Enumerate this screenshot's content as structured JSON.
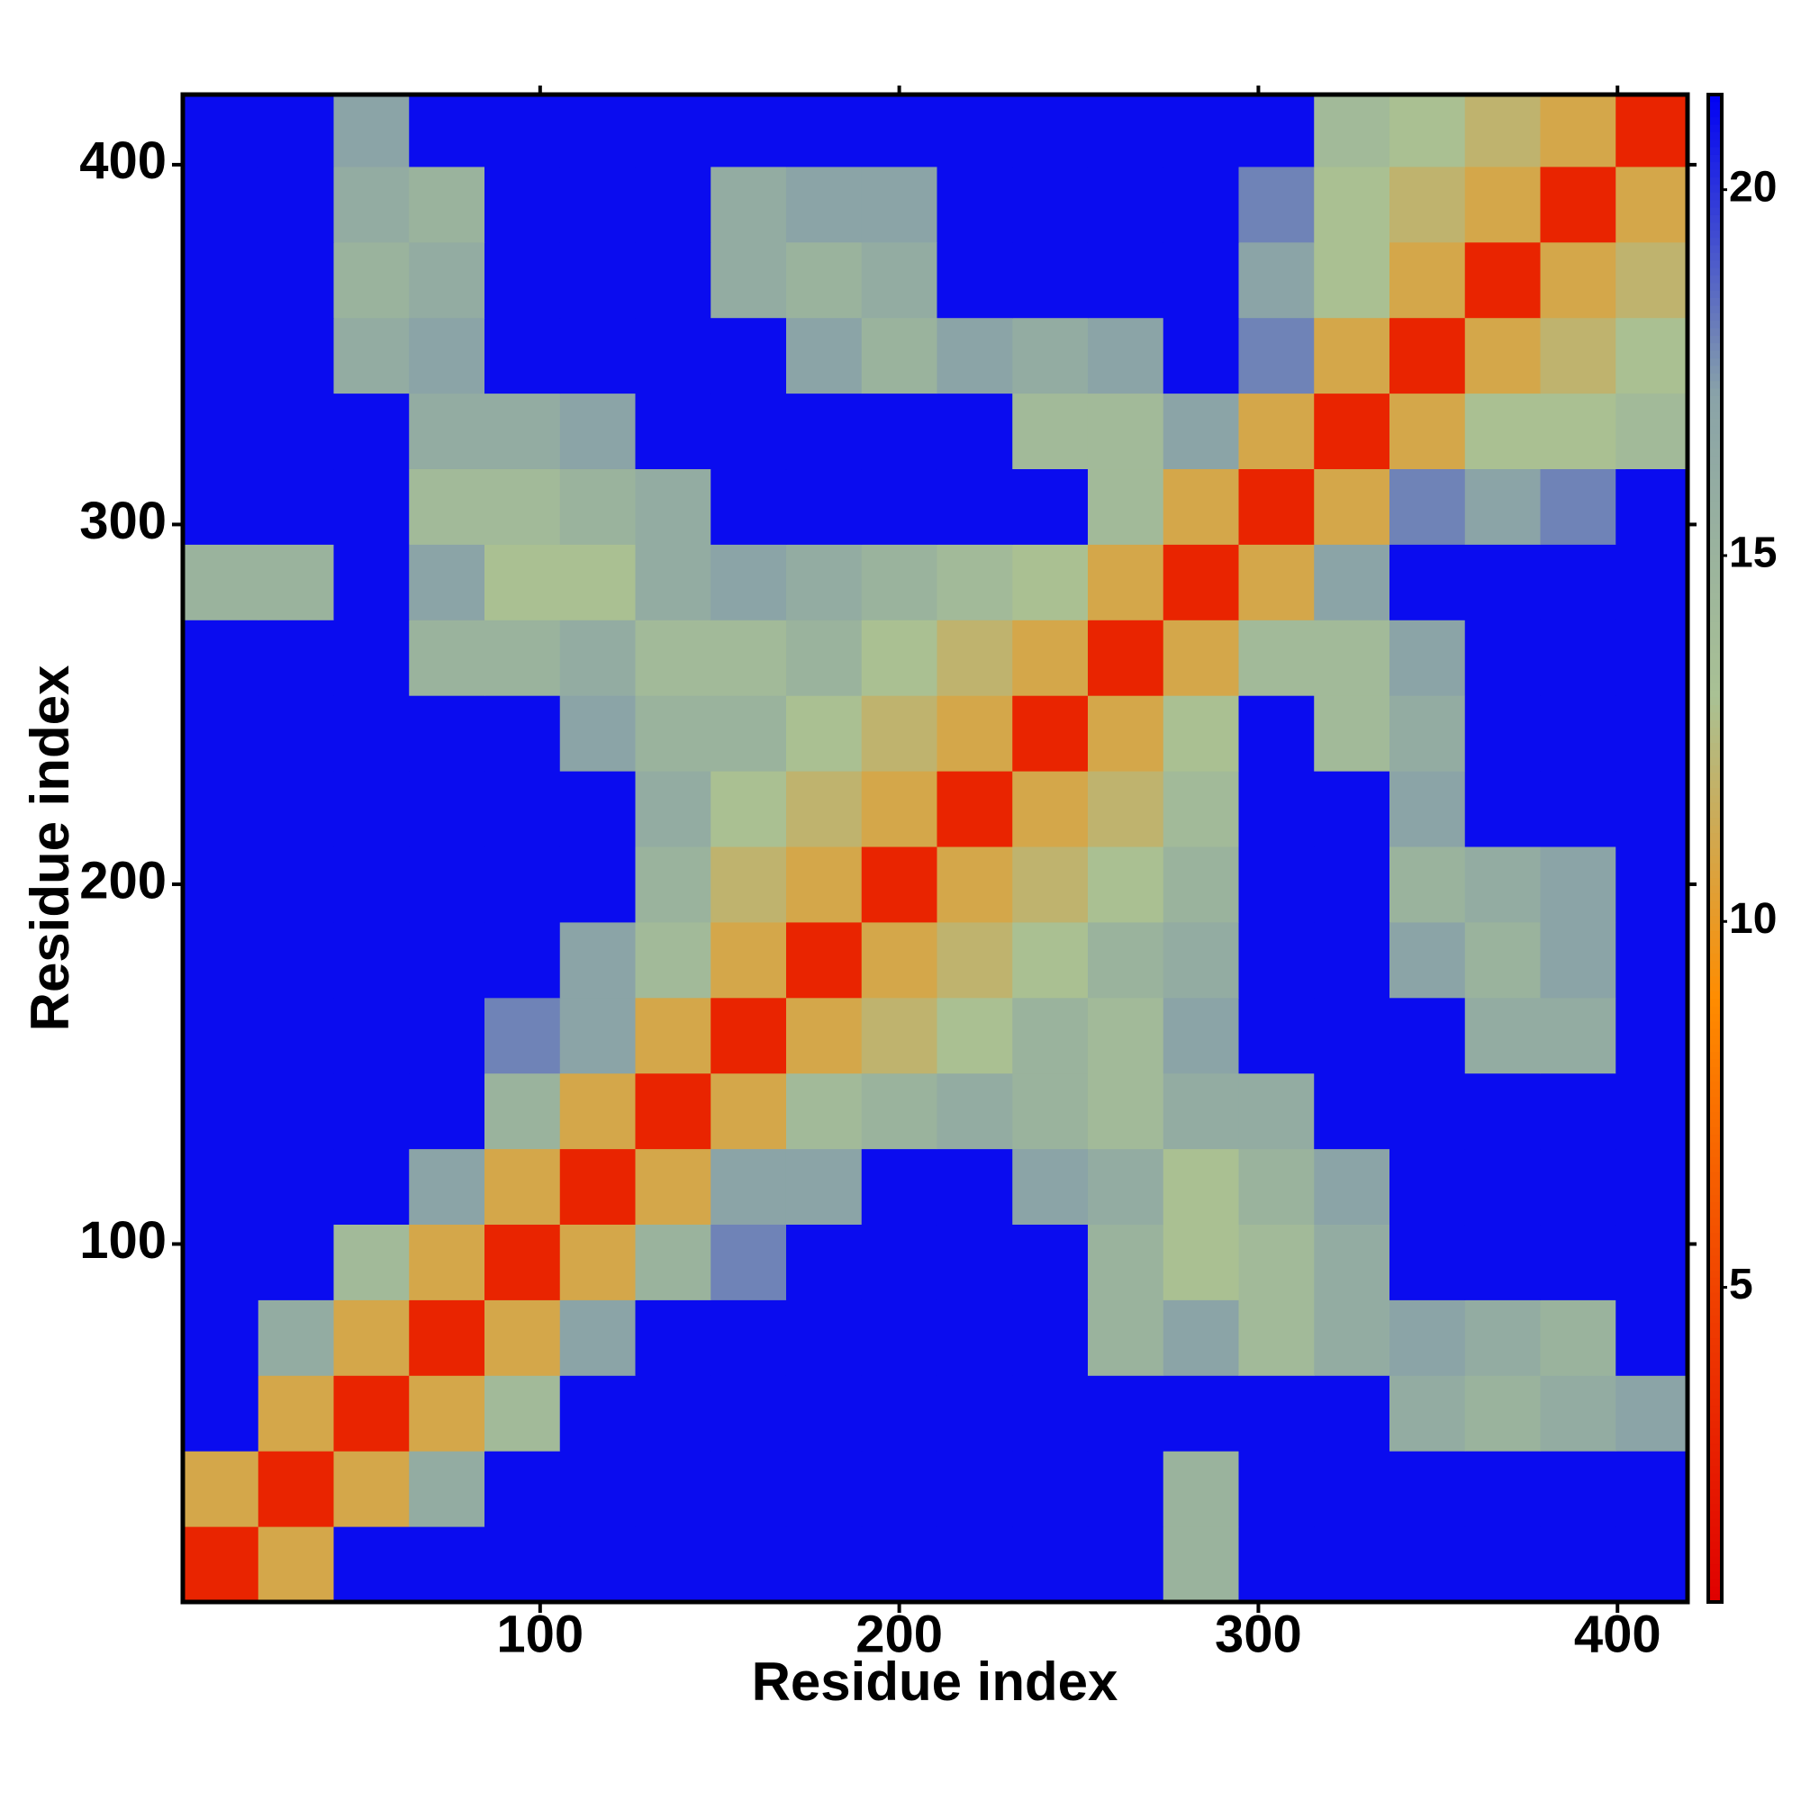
{
  "chart_data": {
    "type": "heatmap",
    "xlabel": "Residue index",
    "ylabel": "Residue index",
    "x": [
      11,
      32,
      53,
      74,
      95,
      116,
      137,
      158,
      179,
      200,
      221,
      242,
      263,
      284,
      305,
      326,
      347,
      368,
      389,
      410
    ],
    "y": [
      11,
      32,
      53,
      74,
      95,
      116,
      137,
      158,
      179,
      200,
      221,
      242,
      263,
      284,
      305,
      326,
      347,
      368,
      389,
      410
    ],
    "z": [
      [
        3,
        11,
        21,
        21,
        21,
        21,
        21,
        21,
        21,
        21,
        21,
        21,
        21,
        15,
        21,
        21,
        21,
        21,
        21,
        21
      ],
      [
        11,
        3,
        11,
        16,
        21,
        21,
        21,
        21,
        21,
        21,
        21,
        21,
        21,
        15,
        21,
        21,
        21,
        21,
        21,
        21
      ],
      [
        21,
        11,
        3,
        11,
        14,
        21,
        21,
        21,
        21,
        21,
        21,
        21,
        21,
        21,
        21,
        21,
        16,
        15,
        16,
        17
      ],
      [
        21,
        16,
        11,
        3,
        11,
        17,
        21,
        21,
        21,
        21,
        21,
        21,
        15,
        17,
        14,
        16,
        17,
        16,
        15,
        21
      ],
      [
        21,
        21,
        14,
        11,
        3,
        11,
        15,
        18,
        21,
        21,
        21,
        21,
        15,
        13,
        14,
        16,
        21,
        21,
        21,
        21
      ],
      [
        21,
        21,
        21,
        17,
        11,
        3,
        11,
        17,
        17,
        21,
        21,
        17,
        16,
        13,
        15,
        17,
        21,
        21,
        21,
        21
      ],
      [
        21,
        21,
        21,
        21,
        15,
        11,
        3,
        11,
        14,
        15,
        16,
        15,
        14,
        16,
        16,
        21,
        21,
        21,
        21,
        21
      ],
      [
        21,
        21,
        21,
        21,
        18,
        17,
        11,
        3,
        11,
        12,
        13,
        15,
        14,
        17,
        21,
        21,
        21,
        16,
        16,
        21
      ],
      [
        21,
        21,
        21,
        21,
        21,
        17,
        14,
        11,
        3,
        11,
        12,
        13,
        15,
        16,
        21,
        21,
        17,
        15,
        17,
        21
      ],
      [
        21,
        21,
        21,
        21,
        21,
        21,
        15,
        12,
        11,
        3,
        11,
        12,
        13,
        15,
        21,
        21,
        15,
        16,
        17,
        21
      ],
      [
        21,
        21,
        21,
        21,
        21,
        21,
        16,
        13,
        12,
        11,
        3,
        11,
        12,
        14,
        21,
        21,
        17,
        21,
        21,
        21
      ],
      [
        21,
        21,
        21,
        21,
        21,
        17,
        15,
        15,
        13,
        12,
        11,
        3,
        11,
        13,
        21,
        14,
        16,
        21,
        21,
        21
      ],
      [
        21,
        21,
        21,
        15,
        15,
        16,
        14,
        14,
        15,
        13,
        12,
        11,
        3,
        11,
        14,
        14,
        17,
        21,
        21,
        21
      ],
      [
        15,
        15,
        21,
        17,
        13,
        13,
        16,
        17,
        16,
        15,
        14,
        13,
        11,
        3,
        11,
        17,
        21,
        21,
        21,
        21
      ],
      [
        21,
        21,
        21,
        14,
        14,
        15,
        16,
        21,
        21,
        21,
        21,
        21,
        14,
        11,
        3,
        11,
        18,
        17,
        18,
        21
      ],
      [
        21,
        21,
        21,
        16,
        16,
        17,
        21,
        21,
        21,
        21,
        21,
        14,
        14,
        17,
        11,
        3,
        11,
        13,
        13,
        14
      ],
      [
        21,
        21,
        16,
        17,
        21,
        21,
        21,
        21,
        17,
        15,
        17,
        16,
        17,
        21,
        18,
        11,
        3,
        11,
        12,
        13
      ],
      [
        21,
        21,
        15,
        16,
        21,
        21,
        21,
        16,
        15,
        16,
        21,
        21,
        21,
        21,
        17,
        13,
        11,
        3,
        11,
        12
      ],
      [
        21,
        21,
        16,
        15,
        21,
        21,
        21,
        16,
        17,
        17,
        21,
        21,
        21,
        21,
        18,
        13,
        12,
        11,
        3,
        11
      ],
      [
        21,
        21,
        17,
        21,
        21,
        21,
        21,
        21,
        21,
        21,
        21,
        21,
        21,
        21,
        21,
        14,
        13,
        12,
        11,
        3
      ]
    ],
    "xlim": [
      0.5,
      419.5
    ],
    "ylim": [
      0.5,
      419.5
    ],
    "xticks": [
      100,
      200,
      300,
      400
    ],
    "yticks": [
      100,
      200,
      300,
      400
    ],
    "clim": [
      0.7,
      21.3
    ],
    "cticks": [
      5,
      10,
      15,
      20
    ],
    "colorscale": [
      "#e00000",
      "#f04000",
      "#ff8c00",
      "#a9c194",
      "#8aa3a8",
      "#0000f5"
    ]
  }
}
